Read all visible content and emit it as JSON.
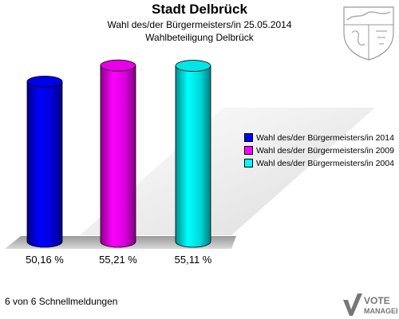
{
  "title": "Stadt Delbrück",
  "subtitle": "Wahl des/der Bürgermeisters/in  25.05.2014",
  "subtitle2": "Wahlbeteiligung Delbrück",
  "footer": "6 von 6 Schnellmeldungen",
  "logo": {
    "line1": "VOTE",
    "line2": "MANAGER"
  },
  "chart_data": {
    "type": "bar",
    "title": "Stadt Delbrück",
    "categories": [
      "Wahl des/der Bürgermeisters/in  2014",
      "Wahl des/der Bürgermeisters/in 2009",
      "Wahl des/der Bürgermeisters/in  2004"
    ],
    "values": [
      50.16,
      55.21,
      55.11
    ],
    "value_labels": [
      "50,16 %",
      "55,21 %",
      "55,11 %"
    ],
    "colors": [
      "#0000ff",
      "#ff00ff",
      "#00ffff"
    ],
    "legend_position": "right",
    "grid": false
  }
}
